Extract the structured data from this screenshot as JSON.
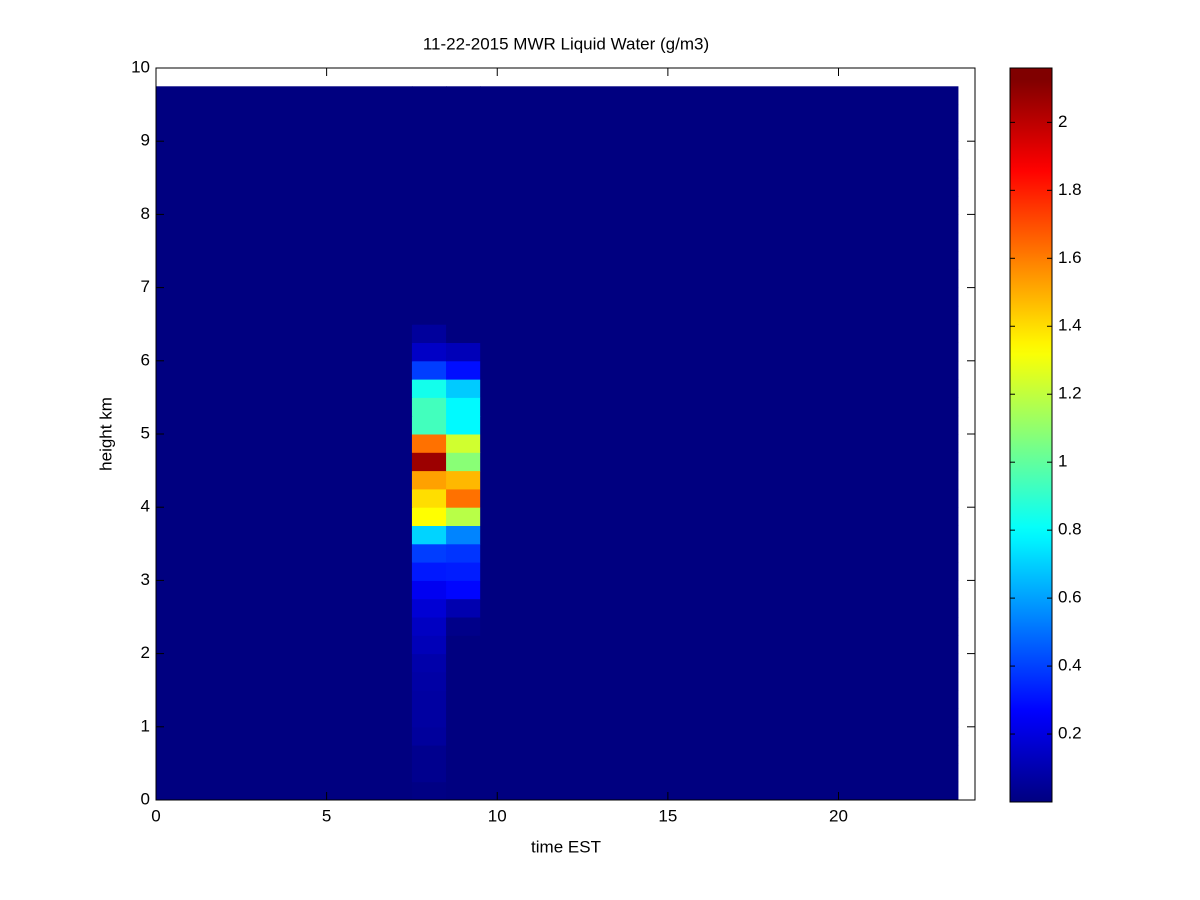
{
  "chart_data": {
    "type": "heatmap",
    "title": "11-22-2015 MWR Liquid Water (g/m3)",
    "xlabel": "time EST",
    "ylabel": "height km",
    "colormap": "jet",
    "xlim": [
      0,
      24
    ],
    "xticks": [
      0,
      5,
      10,
      15,
      20
    ],
    "ylim": [
      0,
      10
    ],
    "yticks": [
      0,
      1,
      2,
      3,
      4,
      5,
      6,
      7,
      8,
      9,
      10
    ],
    "clim": [
      0,
      2.16
    ],
    "cticks": [
      0.2,
      0.4,
      0.6,
      0.8,
      1,
      1.2,
      1.4,
      1.6,
      1.8,
      2
    ],
    "x": [
      0,
      7.5,
      8.5,
      9.5,
      23.5
    ],
    "y": [
      0,
      0.25,
      0.5,
      0.75,
      1,
      1.25,
      1.5,
      1.75,
      2,
      2.25,
      2.5,
      2.75,
      3,
      3.25,
      3.5,
      3.75,
      4,
      4.25,
      4.5,
      4.75,
      5,
      5.25,
      5.5,
      5.75,
      6,
      6.25,
      6.5,
      6.75,
      7,
      7.25,
      7.5,
      7.75,
      8,
      8.25,
      8.5,
      8.75,
      9,
      9.25,
      9.5,
      9.75
    ],
    "values": [
      [
        0,
        0.01,
        0,
        0
      ],
      [
        0,
        0.03,
        0,
        0
      ],
      [
        0,
        0.03,
        0,
        0
      ],
      [
        0,
        0.06,
        0,
        0
      ],
      [
        0,
        0.07,
        0,
        0
      ],
      [
        0,
        0.07,
        0,
        0
      ],
      [
        0,
        0.08,
        0,
        0
      ],
      [
        0,
        0.09,
        0,
        0
      ],
      [
        0,
        0.12,
        0,
        0
      ],
      [
        0,
        0.14,
        0.02,
        0
      ],
      [
        0,
        0.18,
        0.1,
        0
      ],
      [
        0,
        0.24,
        0.28,
        0
      ],
      [
        0,
        0.32,
        0.33,
        0
      ],
      [
        0,
        0.4,
        0.38,
        0
      ],
      [
        0,
        0.72,
        0.55,
        0
      ],
      [
        0,
        1.35,
        1.2,
        0
      ],
      [
        0,
        1.42,
        1.65,
        0
      ],
      [
        0,
        1.55,
        1.5,
        0
      ],
      [
        0,
        2.1,
        1.1,
        0
      ],
      [
        0,
        1.65,
        1.25,
        0
      ],
      [
        0,
        0.95,
        0.8,
        0
      ],
      [
        0,
        0.95,
        0.8,
        0
      ],
      [
        0,
        0.85,
        0.7,
        0
      ],
      [
        0,
        0.4,
        0.3,
        0
      ],
      [
        0,
        0.15,
        0.12,
        0
      ],
      [
        0,
        0.06,
        0,
        0
      ],
      [
        0,
        0,
        0,
        0
      ],
      [
        0,
        0,
        0,
        0
      ],
      [
        0,
        0,
        0,
        0
      ],
      [
        0,
        0,
        0,
        0
      ],
      [
        0,
        0,
        0,
        0
      ],
      [
        0,
        0,
        0,
        0
      ],
      [
        0,
        0,
        0,
        0
      ],
      [
        0,
        0,
        0,
        0
      ],
      [
        0,
        0,
        0,
        0
      ],
      [
        0,
        0,
        0,
        0
      ],
      [
        0,
        0,
        0,
        0
      ],
      [
        0,
        0,
        0,
        0
      ],
      [
        0,
        0,
        0,
        0
      ]
    ]
  }
}
